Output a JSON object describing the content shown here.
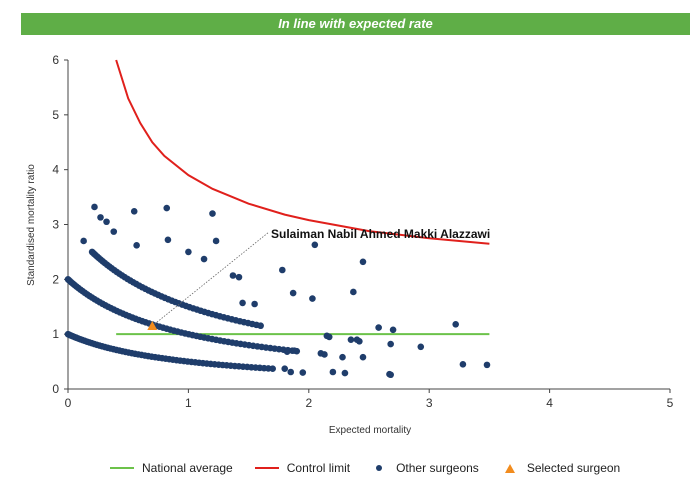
{
  "banner": {
    "text": "In line with expected rate",
    "color": "#5fae47"
  },
  "chart_data": {
    "type": "scatter",
    "xlabel": "Expected mortality",
    "ylabel": "Standardised mortality ratio",
    "xlim": [
      0,
      5
    ],
    "ylim": [
      0,
      6
    ],
    "xticks": [
      "0",
      "1",
      "2",
      "3",
      "4",
      "5"
    ],
    "yticks": [
      "0",
      "1",
      "2",
      "3",
      "4",
      "5",
      "6"
    ],
    "grid": false,
    "legend_position": "bottom",
    "annotation": {
      "text": "Sulaiman Nabil Ahmed Makki Alazzawi",
      "x": 0.7,
      "y": 1.15
    },
    "series": [
      {
        "name": "National average",
        "kind": "line",
        "color": "#6cc24a",
        "x": [
          0.4,
          3.5
        ],
        "y": [
          1.0,
          1.0
        ]
      },
      {
        "name": "Control limit",
        "kind": "line",
        "color": "#e0201c",
        "x": [
          0.4,
          0.5,
          0.6,
          0.7,
          0.8,
          1.0,
          1.2,
          1.5,
          1.8,
          2.0,
          2.5,
          3.0,
          3.5
        ],
        "y": [
          6.0,
          5.3,
          4.85,
          4.5,
          4.25,
          3.9,
          3.65,
          3.38,
          3.18,
          3.08,
          2.88,
          2.75,
          2.65
        ]
      },
      {
        "name": "Other surgeons",
        "kind": "scatter",
        "color": "#1f3d6b",
        "curves": [
          {
            "k": 1,
            "x_from": 0.0,
            "x_to": 1.7,
            "count": 65
          },
          {
            "k": 2,
            "x_from": 0.0,
            "x_to": 1.9,
            "count": 70
          },
          {
            "k": 3,
            "x_from": 0.2,
            "x_to": 1.6,
            "count": 55
          }
        ],
        "x": [
          0.13,
          0.22,
          0.27,
          0.32,
          0.38,
          0.55,
          0.57,
          0.82,
          0.83,
          1.0,
          1.13,
          1.2,
          1.23,
          1.37,
          1.42,
          1.45,
          1.55,
          1.78,
          1.87,
          2.03,
          2.05,
          2.37,
          2.42,
          2.45,
          2.15,
          2.17,
          2.35,
          2.4,
          2.58,
          2.68,
          2.7,
          2.93,
          3.22,
          3.28,
          3.48,
          2.1,
          2.13,
          2.2,
          2.28,
          2.3,
          2.45,
          2.67,
          2.68,
          1.8,
          1.85,
          1.95,
          1.82,
          1.88
        ],
        "y": [
          2.7,
          3.32,
          3.13,
          3.05,
          2.87,
          3.24,
          2.62,
          3.3,
          2.72,
          2.5,
          2.37,
          3.2,
          2.7,
          2.07,
          2.04,
          1.57,
          1.55,
          2.17,
          1.75,
          1.65,
          2.63,
          1.77,
          0.87,
          2.32,
          0.97,
          0.95,
          0.9,
          0.9,
          1.12,
          0.82,
          1.08,
          0.77,
          1.18,
          0.45,
          0.44,
          0.65,
          0.63,
          0.31,
          0.58,
          0.29,
          0.58,
          0.27,
          0.26,
          0.37,
          0.31,
          0.3,
          0.68,
          0.7
        ]
      },
      {
        "name": "Selected surgeon",
        "kind": "scatter",
        "marker": "triangle",
        "color": "#f28c1e",
        "x": [
          0.7
        ],
        "y": [
          1.15
        ]
      }
    ]
  }
}
